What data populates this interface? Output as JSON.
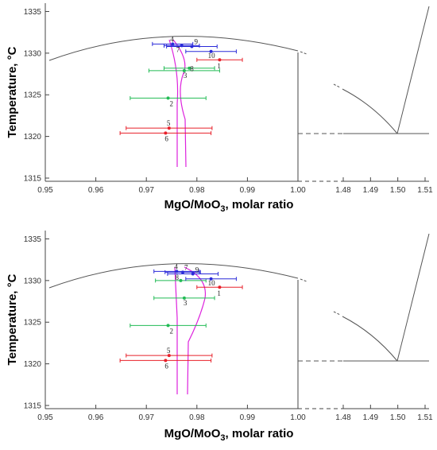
{
  "chart_data": [
    {
      "type": "scatter",
      "panel": "top",
      "xlabel_main": "MgO/MoO",
      "xlabel_sub": "3",
      "xlabel_tail": ", molar ratio",
      "ylabel": "Temperature, °C",
      "ylim": [
        1315,
        1336
      ],
      "ylim_broken": [
        1315,
        1336
      ],
      "xlim_left": [
        0.95,
        1.0
      ],
      "xlim_right": [
        1.475,
        1.515
      ],
      "yticks": [
        1315,
        1320,
        1325,
        1330,
        1335
      ],
      "xticks_left": [
        0.95,
        0.96,
        0.97,
        0.98,
        0.99,
        1.0
      ],
      "xticks_right": [
        1.48,
        1.49,
        1.5,
        1.51
      ],
      "xtick_labels_left": [
        "0.95",
        "0.96",
        "0.97",
        "0.98",
        "0.99",
        "1.00"
      ],
      "xtick_labels_right": [
        "1.48",
        "1.49",
        "1.50",
        "1.51"
      ],
      "colors": {
        "red": "#e8202a",
        "green": "#22bb55",
        "blue": "#2a2ad8",
        "magenta": "#dd22dd",
        "curve": "#555555"
      },
      "points": [
        {
          "label": "1",
          "x": 0.9845,
          "y": 1329.2,
          "xerr": 0.0045,
          "color": "red",
          "label_dx": -3,
          "label_dy": 11
        },
        {
          "label": "2",
          "x": 0.9743,
          "y": 1324.6,
          "xerr": 0.0075,
          "color": "green",
          "label_dx": 2,
          "label_dy": 10
        },
        {
          "label": "3",
          "x": 0.9775,
          "y": 1327.9,
          "xerr": 0.007,
          "color": "green",
          "label_dx": -1,
          "label_dy": 9
        },
        {
          "label": "4",
          "x": 0.9752,
          "y": 1331.1,
          "xerr": 0.004,
          "color": "blue",
          "label_dx": -3,
          "label_dy": -3
        },
        {
          "label": "5",
          "x": 0.9745,
          "y": 1321.0,
          "xerr": 0.0085,
          "color": "red",
          "label_dx": -3,
          "label_dy": -3
        },
        {
          "label": "6",
          "x": 0.9738,
          "y": 1320.4,
          "xerr": 0.009,
          "color": "red",
          "label_dx": -1,
          "label_dy": 10
        },
        {
          "label": "7",
          "x": 0.977,
          "y": 1330.9,
          "xerr": 0.0035,
          "color": "blue",
          "label_dx": -7,
          "label_dy": 8
        },
        {
          "label": "8",
          "x": 0.9785,
          "y": 1328.2,
          "xerr": 0.005,
          "color": "green",
          "label_dx": 1,
          "label_dy": 4
        },
        {
          "label": "9",
          "x": 0.979,
          "y": 1330.8,
          "xerr": 0.005,
          "color": "blue",
          "label_dx": 3,
          "label_dy": -3
        },
        {
          "label": "10",
          "x": 0.9828,
          "y": 1330.2,
          "xerr": 0.005,
          "color": "blue",
          "label_dx": -4,
          "label_dy": 8
        }
      ]
    },
    {
      "type": "scatter",
      "panel": "bottom",
      "xlabel_main": "MgO/MoO",
      "xlabel_sub": "3",
      "xlabel_tail": ", molar ratio",
      "ylabel": "Temperature, °C",
      "ylim": [
        1315,
        1336
      ],
      "yticks": [
        1315,
        1320,
        1325,
        1330,
        1335
      ],
      "xticks_left": [
        0.95,
        0.96,
        0.97,
        0.98,
        0.99,
        1.0
      ],
      "xticks_right": [
        1.48,
        1.49,
        1.5,
        1.51
      ],
      "xtick_labels_left": [
        "0.95",
        "0.96",
        "0.97",
        "0.98",
        "0.99",
        "1.00"
      ],
      "xtick_labels_right": [
        "1.48",
        "1.49",
        "1.50",
        "1.51"
      ],
      "colors": {
        "red": "#e8202a",
        "green": "#22bb55",
        "blue": "#2a2ad8",
        "magenta": "#dd22dd",
        "curve": "#555555"
      },
      "points": [
        {
          "label": "1",
          "x": 0.9845,
          "y": 1329.2,
          "xerr": 0.0045,
          "color": "red",
          "label_dx": -3,
          "label_dy": 11
        },
        {
          "label": "2",
          "x": 0.9743,
          "y": 1324.6,
          "xerr": 0.0075,
          "color": "green",
          "label_dx": 2,
          "label_dy": 10
        },
        {
          "label": "3",
          "x": 0.9775,
          "y": 1327.9,
          "xerr": 0.006,
          "color": "green",
          "label_dx": -1,
          "label_dy": 9
        },
        {
          "label": "4",
          "x": 0.976,
          "y": 1331.1,
          "xerr": 0.0045,
          "color": "blue",
          "label_dx": -3,
          "label_dy": -3
        },
        {
          "label": "5",
          "x": 0.9745,
          "y": 1321.0,
          "xerr": 0.0085,
          "color": "red",
          "label_dx": -3,
          "label_dy": -3
        },
        {
          "label": "6",
          "x": 0.9738,
          "y": 1320.4,
          "xerr": 0.009,
          "color": "red",
          "label_dx": -1,
          "label_dy": 10
        },
        {
          "label": "7",
          "x": 0.9772,
          "y": 1331.0,
          "xerr": 0.0035,
          "color": "blue",
          "label_dx": 2,
          "label_dy": -3
        },
        {
          "label": "8",
          "x": 0.9768,
          "y": 1330.0,
          "xerr": 0.005,
          "color": "green",
          "label_dx": -7,
          "label_dy": -1
        },
        {
          "label": "9",
          "x": 0.9792,
          "y": 1330.8,
          "xerr": 0.005,
          "color": "blue",
          "label_dx": 3,
          "label_dy": -2
        },
        {
          "label": "10",
          "x": 0.9828,
          "y": 1330.2,
          "xerr": 0.005,
          "color": "blue",
          "label_dx": -4,
          "label_dy": 8
        }
      ]
    }
  ]
}
